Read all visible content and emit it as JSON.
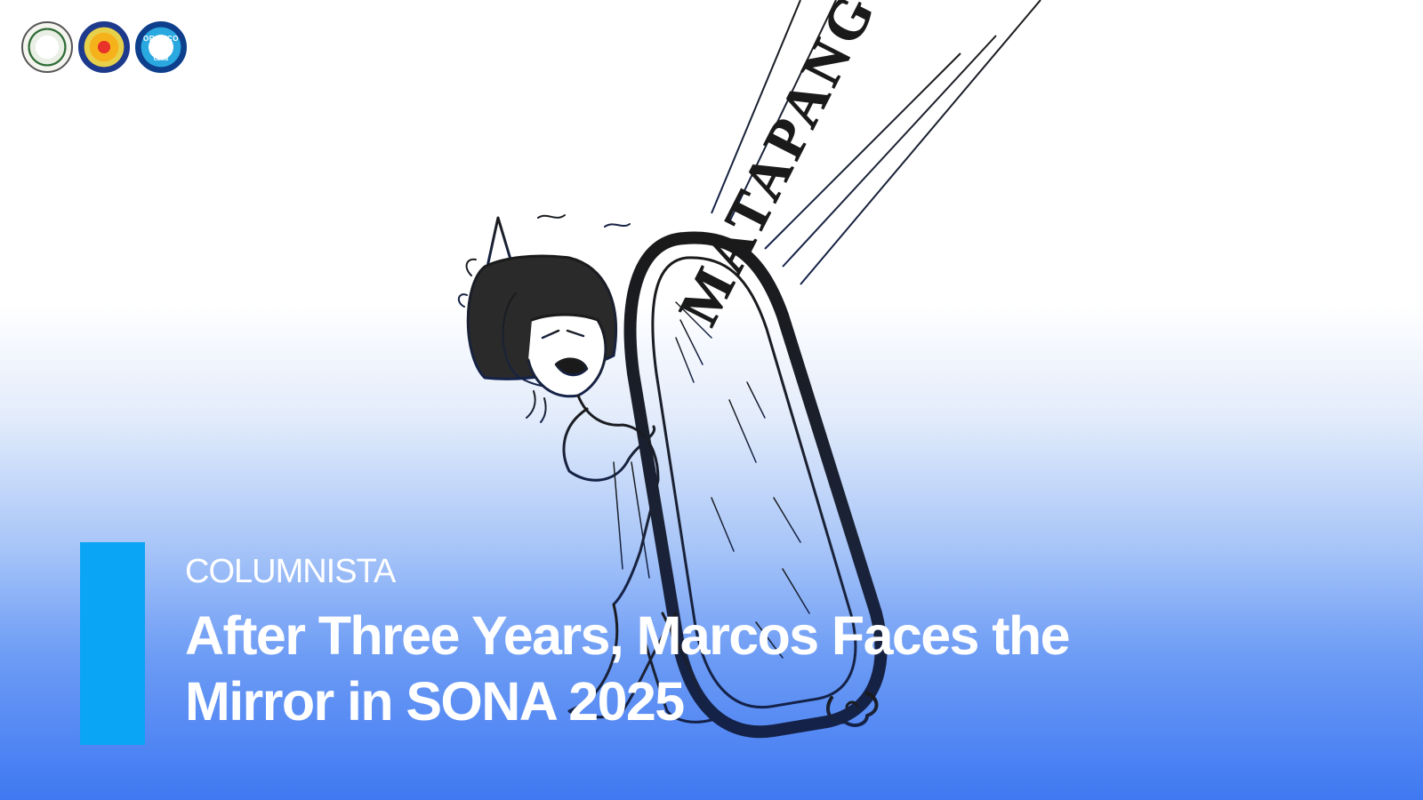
{
  "logos": [
    {
      "name": "school-seal"
    },
    {
      "name": "publication-seal"
    },
    {
      "name": "club-seal",
      "text": "ORAWCO",
      "subtext": "CLUB"
    }
  ],
  "cartoon": {
    "mirror_text": "MATAPANG KA NGA!"
  },
  "article": {
    "category": "COLUMNISTA",
    "title": "After Three Years, Marcos Faces the Mirror in SONA 2025"
  },
  "colors": {
    "accent": "#0aa5f5",
    "gradient_bottom": "#3f78f2",
    "text": "#ffffff",
    "ink": "#141a2e"
  }
}
